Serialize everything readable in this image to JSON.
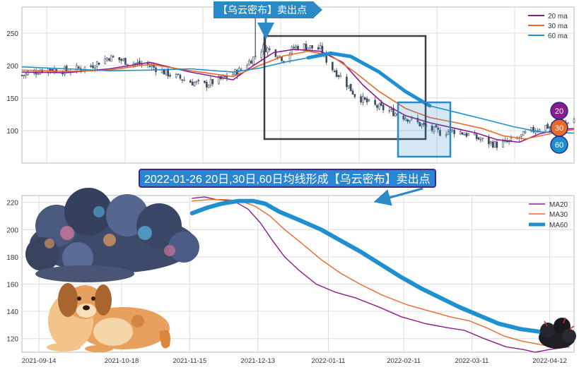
{
  "colors": {
    "ma20": "#8b1a8b",
    "ma30": "#e8692a",
    "ma60": "#1e90cf",
    "candle": "#3b4a5e",
    "box_dark": "#3a3f48",
    "box_blue": "#2b8ac6",
    "grid": "#dcdcdc",
    "frame": "#b8b8b8"
  },
  "annotations": {
    "top_label": "【乌云密布】卖出点",
    "bottom_label": "2022-01-26 20日,30日,60日均线形成【乌云密布】卖出点"
  },
  "badges": [
    "20",
    "30",
    "60"
  ],
  "icons": {
    "cloud": "storm-cloud-illustration",
    "dog": "dog-illustration",
    "thundercloud": "small-thundercloud-illustration"
  },
  "chart_data": [
    {
      "type": "candlestick",
      "ylim": [
        50,
        290
      ],
      "yticks": [
        "100",
        "150",
        "200",
        "250"
      ],
      "grid": true,
      "legend_position": "top-right",
      "legend": [
        "20 ma",
        "30 ma",
        "60 ma"
      ],
      "x_range": [
        "2021-08-03",
        "2022-05-02"
      ],
      "price_path": [
        [
          "2021-08-03",
          185
        ],
        [
          "2021-08-15",
          195
        ],
        [
          "2021-08-25",
          192
        ],
        [
          "2021-09-05",
          198
        ],
        [
          "2021-09-15",
          213
        ],
        [
          "2021-09-25",
          205
        ],
        [
          "2021-10-05",
          200
        ],
        [
          "2021-10-15",
          186
        ],
        [
          "2021-10-25",
          175
        ],
        [
          "2021-11-01",
          170
        ],
        [
          "2021-11-10",
          180
        ],
        [
          "2021-11-18",
          192
        ],
        [
          "2021-11-25",
          212
        ],
        [
          "2021-11-30",
          228
        ],
        [
          "2021-12-05",
          222
        ],
        [
          "2021-12-10",
          210
        ],
        [
          "2021-12-15",
          228
        ],
        [
          "2021-12-20",
          230
        ],
        [
          "2021-12-28",
          225
        ],
        [
          "2022-01-02",
          198
        ],
        [
          "2022-01-08",
          180
        ],
        [
          "2022-01-14",
          155
        ],
        [
          "2022-01-22",
          140
        ],
        [
          "2022-02-02",
          128
        ],
        [
          "2022-02-10",
          118
        ],
        [
          "2022-02-18",
          105
        ],
        [
          "2022-02-25",
          97
        ],
        [
          "2022-03-05",
          100
        ],
        [
          "2022-03-12",
          92
        ],
        [
          "2022-03-18",
          85
        ],
        [
          "2022-03-25",
          78
        ],
        [
          "2022-04-02",
          84
        ],
        [
          "2022-04-10",
          98
        ],
        [
          "2022-04-17",
          107
        ],
        [
          "2022-04-24",
          104
        ],
        [
          "2022-05-02",
          118
        ]
      ],
      "spikes": [
        [
          "2021-11-26",
          278
        ],
        [
          "2021-12-01",
          243
        ]
      ],
      "series": [
        {
          "name": "20 ma",
          "points": [
            [
              "2021-08-03",
              190
            ],
            [
              "2021-08-25",
              189
            ],
            [
              "2021-09-15",
              195
            ],
            [
              "2021-10-05",
              205
            ],
            [
              "2021-10-25",
              190
            ],
            [
              "2021-11-15",
              178
            ],
            [
              "2021-11-25",
              200
            ],
            [
              "2021-12-05",
              220
            ],
            [
              "2021-12-15",
              225
            ],
            [
              "2021-12-28",
              222
            ],
            [
              "2022-01-08",
              205
            ],
            [
              "2022-01-18",
              170
            ],
            [
              "2022-01-28",
              142
            ],
            [
              "2022-02-08",
              123
            ],
            [
              "2022-02-20",
              112
            ],
            [
              "2022-03-05",
              103
            ],
            [
              "2022-03-15",
              96
            ],
            [
              "2022-03-25",
              86
            ],
            [
              "2022-04-05",
              82
            ],
            [
              "2022-04-15",
              95
            ],
            [
              "2022-04-25",
              102
            ],
            [
              "2022-05-02",
              103
            ]
          ]
        },
        {
          "name": "30 ma",
          "points": [
            [
              "2021-08-03",
              193
            ],
            [
              "2021-08-25",
              191
            ],
            [
              "2021-09-15",
              193
            ],
            [
              "2021-10-05",
              202
            ],
            [
              "2021-10-25",
              192
            ],
            [
              "2021-11-15",
              183
            ],
            [
              "2021-11-28",
              200
            ],
            [
              "2021-12-10",
              215
            ],
            [
              "2021-12-22",
              222
            ],
            [
              "2022-01-02",
              216
            ],
            [
              "2022-01-14",
              190
            ],
            [
              "2022-01-26",
              160
            ],
            [
              "2022-02-08",
              134
            ],
            [
              "2022-02-20",
              120
            ],
            [
              "2022-03-05",
              112
            ],
            [
              "2022-03-18",
              103
            ],
            [
              "2022-03-28",
              92
            ],
            [
              "2022-04-08",
              87
            ],
            [
              "2022-04-20",
              95
            ],
            [
              "2022-05-02",
              102
            ]
          ]
        },
        {
          "name": "60 ma",
          "points": [
            [
              "2021-08-03",
              198
            ],
            [
              "2021-08-25",
              195
            ],
            [
              "2021-09-15",
              192
            ],
            [
              "2021-10-05",
              193
            ],
            [
              "2021-10-25",
              195
            ],
            [
              "2021-11-15",
              190
            ],
            [
              "2021-11-28",
              196
            ],
            [
              "2021-12-10",
              205
            ],
            [
              "2021-12-22",
              212
            ],
            [
              "2022-01-02",
              219
            ],
            [
              "2022-01-12",
              214
            ],
            [
              "2022-01-26",
              190
            ],
            [
              "2022-02-08",
              160
            ],
            [
              "2022-02-20",
              138
            ],
            [
              "2022-03-05",
              128
            ],
            [
              "2022-03-18",
              118
            ],
            [
              "2022-04-02",
              106
            ],
            [
              "2022-04-15",
              98
            ],
            [
              "2022-05-02",
              96
            ]
          ]
        }
      ]
    },
    {
      "type": "line",
      "ylim": [
        110,
        225
      ],
      "yticks": [
        "120",
        "140",
        "160",
        "180",
        "200",
        "220"
      ],
      "x_range": [
        "2021-09-07",
        "2022-04-22"
      ],
      "xticks": [
        "2021-09-14",
        "2021-10-18",
        "2021-11-15",
        "2021-12-13",
        "2022-01-11",
        "2022-02-11",
        "2022-03-11",
        "2022-04-12"
      ],
      "grid": true,
      "legend_position": "top-right",
      "legend": [
        "MA20",
        "MA30",
        "MA60"
      ],
      "series": [
        {
          "name": "MA20",
          "points": [
            [
              "2021-11-16",
              223
            ],
            [
              "2021-11-21",
              224
            ],
            [
              "2021-11-26",
              222
            ],
            [
              "2021-12-03",
              221
            ],
            [
              "2021-12-09",
              215
            ],
            [
              "2021-12-14",
              205
            ],
            [
              "2021-12-19",
              192
            ],
            [
              "2021-12-24",
              180
            ],
            [
              "2021-12-30",
              170
            ],
            [
              "2022-01-06",
              160
            ],
            [
              "2022-01-14",
              154
            ],
            [
              "2022-01-22",
              150
            ],
            [
              "2022-02-01",
              143
            ],
            [
              "2022-02-10",
              136
            ],
            [
              "2022-02-20",
              131
            ],
            [
              "2022-03-01",
              128
            ],
            [
              "2022-03-08",
              126
            ],
            [
              "2022-03-16",
              120
            ],
            [
              "2022-03-25",
              114
            ],
            [
              "2022-04-01",
              112
            ],
            [
              "2022-04-06",
              110
            ],
            [
              "2022-04-12",
              112
            ],
            [
              "2022-04-20",
              114
            ]
          ]
        },
        {
          "name": "MA30",
          "points": [
            [
              "2021-11-16",
              221
            ],
            [
              "2021-11-23",
              222
            ],
            [
              "2021-11-30",
              222
            ],
            [
              "2021-12-06",
              221
            ],
            [
              "2021-12-12",
              217
            ],
            [
              "2021-12-18",
              210
            ],
            [
              "2021-12-24",
              200
            ],
            [
              "2021-12-31",
              190
            ],
            [
              "2022-01-08",
              178
            ],
            [
              "2022-01-16",
              168
            ],
            [
              "2022-01-24",
              160
            ],
            [
              "2022-02-02",
              152
            ],
            [
              "2022-02-12",
              145
            ],
            [
              "2022-02-22",
              140
            ],
            [
              "2022-03-02",
              136
            ],
            [
              "2022-03-10",
              133
            ],
            [
              "2022-03-17",
              128
            ],
            [
              "2022-03-24",
              122
            ],
            [
              "2022-04-01",
              118
            ],
            [
              "2022-04-10",
              115
            ],
            [
              "2022-04-20",
              115
            ]
          ]
        },
        {
          "name": "MA60",
          "points": [
            [
              "2021-11-16",
              212
            ],
            [
              "2021-11-22",
              216
            ],
            [
              "2021-11-28",
              219
            ],
            [
              "2021-12-05",
              221
            ],
            [
              "2021-12-11",
              221
            ],
            [
              "2021-12-16",
              219
            ],
            [
              "2021-12-22",
              213
            ],
            [
              "2021-12-30",
              207
            ],
            [
              "2022-01-08",
              200
            ],
            [
              "2022-01-16",
              192
            ],
            [
              "2022-01-24",
              184
            ],
            [
              "2022-02-02",
              174
            ],
            [
              "2022-02-10",
              165
            ],
            [
              "2022-02-18",
              157
            ],
            [
              "2022-02-26",
              150
            ],
            [
              "2022-03-06",
              143
            ],
            [
              "2022-03-14",
              137
            ],
            [
              "2022-03-22",
              131
            ],
            [
              "2022-03-31",
              127
            ],
            [
              "2022-04-08",
              125
            ],
            [
              "2022-04-16",
              124
            ]
          ]
        }
      ]
    }
  ]
}
